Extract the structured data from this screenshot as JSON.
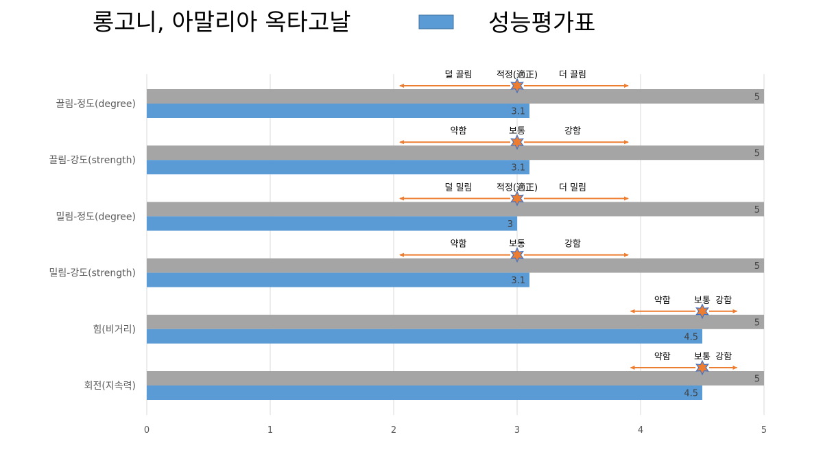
{
  "chart_data": {
    "type": "bar",
    "orientation": "horizontal",
    "title": "롱고니, 아말리아 옥타고날",
    "legend": {
      "position": "top-right",
      "entries": [
        "성능평가표"
      ]
    },
    "categories": [
      "끌림-정도(degree)",
      "끌림-강도(strength)",
      "밀림-정도(degree)",
      "밀림-강도(strength)",
      "힘(비거리)",
      "회전(지속력)"
    ],
    "series": [
      {
        "name": "",
        "color": "#A5A5A5",
        "values": [
          5,
          5,
          5,
          5,
          5,
          5
        ]
      },
      {
        "name": "성능평가표",
        "color": "#5B9BD5",
        "values": [
          3.1,
          3.1,
          3,
          3.1,
          4.5,
          4.5
        ]
      }
    ],
    "xlim": [
      0,
      5
    ],
    "x_ticks": [
      "0",
      "1",
      "2",
      "3",
      "4",
      "5"
    ],
    "grid": true,
    "annotations": [
      {
        "left": "덜 끌림",
        "center": "적정(適正)",
        "right": "더 끌림",
        "marker": 3,
        "from": 2.05,
        "to": 3.9
      },
      {
        "left": "약함",
        "center": "보통",
        "right": "강함",
        "marker": 3,
        "from": 2.05,
        "to": 3.9
      },
      {
        "left": "덜 밀림",
        "center": "적정(適正)",
        "right": "더 밀림",
        "marker": 3,
        "from": 2.05,
        "to": 3.9
      },
      {
        "left": "약함",
        "center": "보통",
        "right": "강함",
        "marker": 3,
        "from": 2.05,
        "to": 3.9
      },
      {
        "left": "약함",
        "center": "보통",
        "right": "강함",
        "marker": 4.5,
        "from": 3.92,
        "to": 4.78
      },
      {
        "left": "약함",
        "center": "보통",
        "right": "강함",
        "marker": 4.5,
        "from": 3.92,
        "to": 4.78
      }
    ],
    "colors": {
      "arrow": "#ED7D31",
      "star_fill": "#ED7D31",
      "star_stroke": "#4472C4",
      "grid": "#D9D9D9"
    }
  }
}
